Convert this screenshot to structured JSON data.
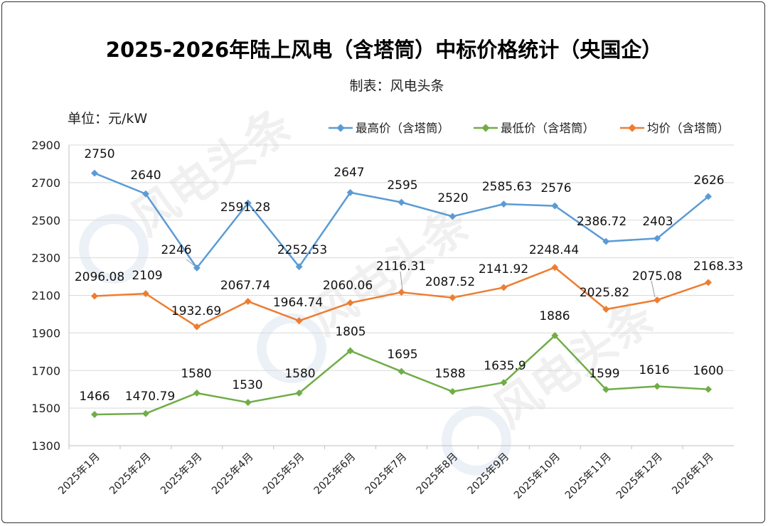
{
  "chart_data": {
    "type": "line",
    "title": "2025-2026年陆上风电（含塔筒）中标价格统计（央国企）",
    "subtitle": "制表：风电头条",
    "ylabel": "单位：元/kW",
    "xlabel": "",
    "ylim": [
      1300,
      2900
    ],
    "yticks": [
      1300,
      1500,
      1700,
      1900,
      2100,
      2300,
      2500,
      2700,
      2900
    ],
    "grid": true,
    "legend_position": "top-right",
    "watermark": "风电头条",
    "categories": [
      "2025年1月",
      "2025年2月",
      "2025年3月",
      "2025年4月",
      "2025年5月",
      "2025年6月",
      "2025年7月",
      "2025年8月",
      "2025年9月",
      "2025年10月",
      "2025年11月",
      "2025年12月",
      "2026年1月"
    ],
    "series": [
      {
        "name": "最高价（含塔筒）",
        "color": "#5B9BD5",
        "values": [
          2750,
          2640,
          2246,
          2591.28,
          2252.53,
          2647,
          2595,
          2520,
          2585.63,
          2576,
          2386.72,
          2403,
          2626
        ]
      },
      {
        "name": "最低价（含塔筒）",
        "color": "#70AD47",
        "values": [
          1466,
          1470.79,
          1580,
          1530,
          1580,
          1805,
          1695,
          1588,
          1635.9,
          1886,
          1599,
          1616,
          1600
        ]
      },
      {
        "name": "均价（含塔筒）",
        "color": "#ED7D31",
        "values": [
          2096.08,
          2109,
          1932.69,
          2067.74,
          1964.74,
          2060.06,
          2116.31,
          2087.52,
          2141.92,
          2248.44,
          2025.82,
          2075.08,
          2168.33
        ]
      }
    ]
  }
}
